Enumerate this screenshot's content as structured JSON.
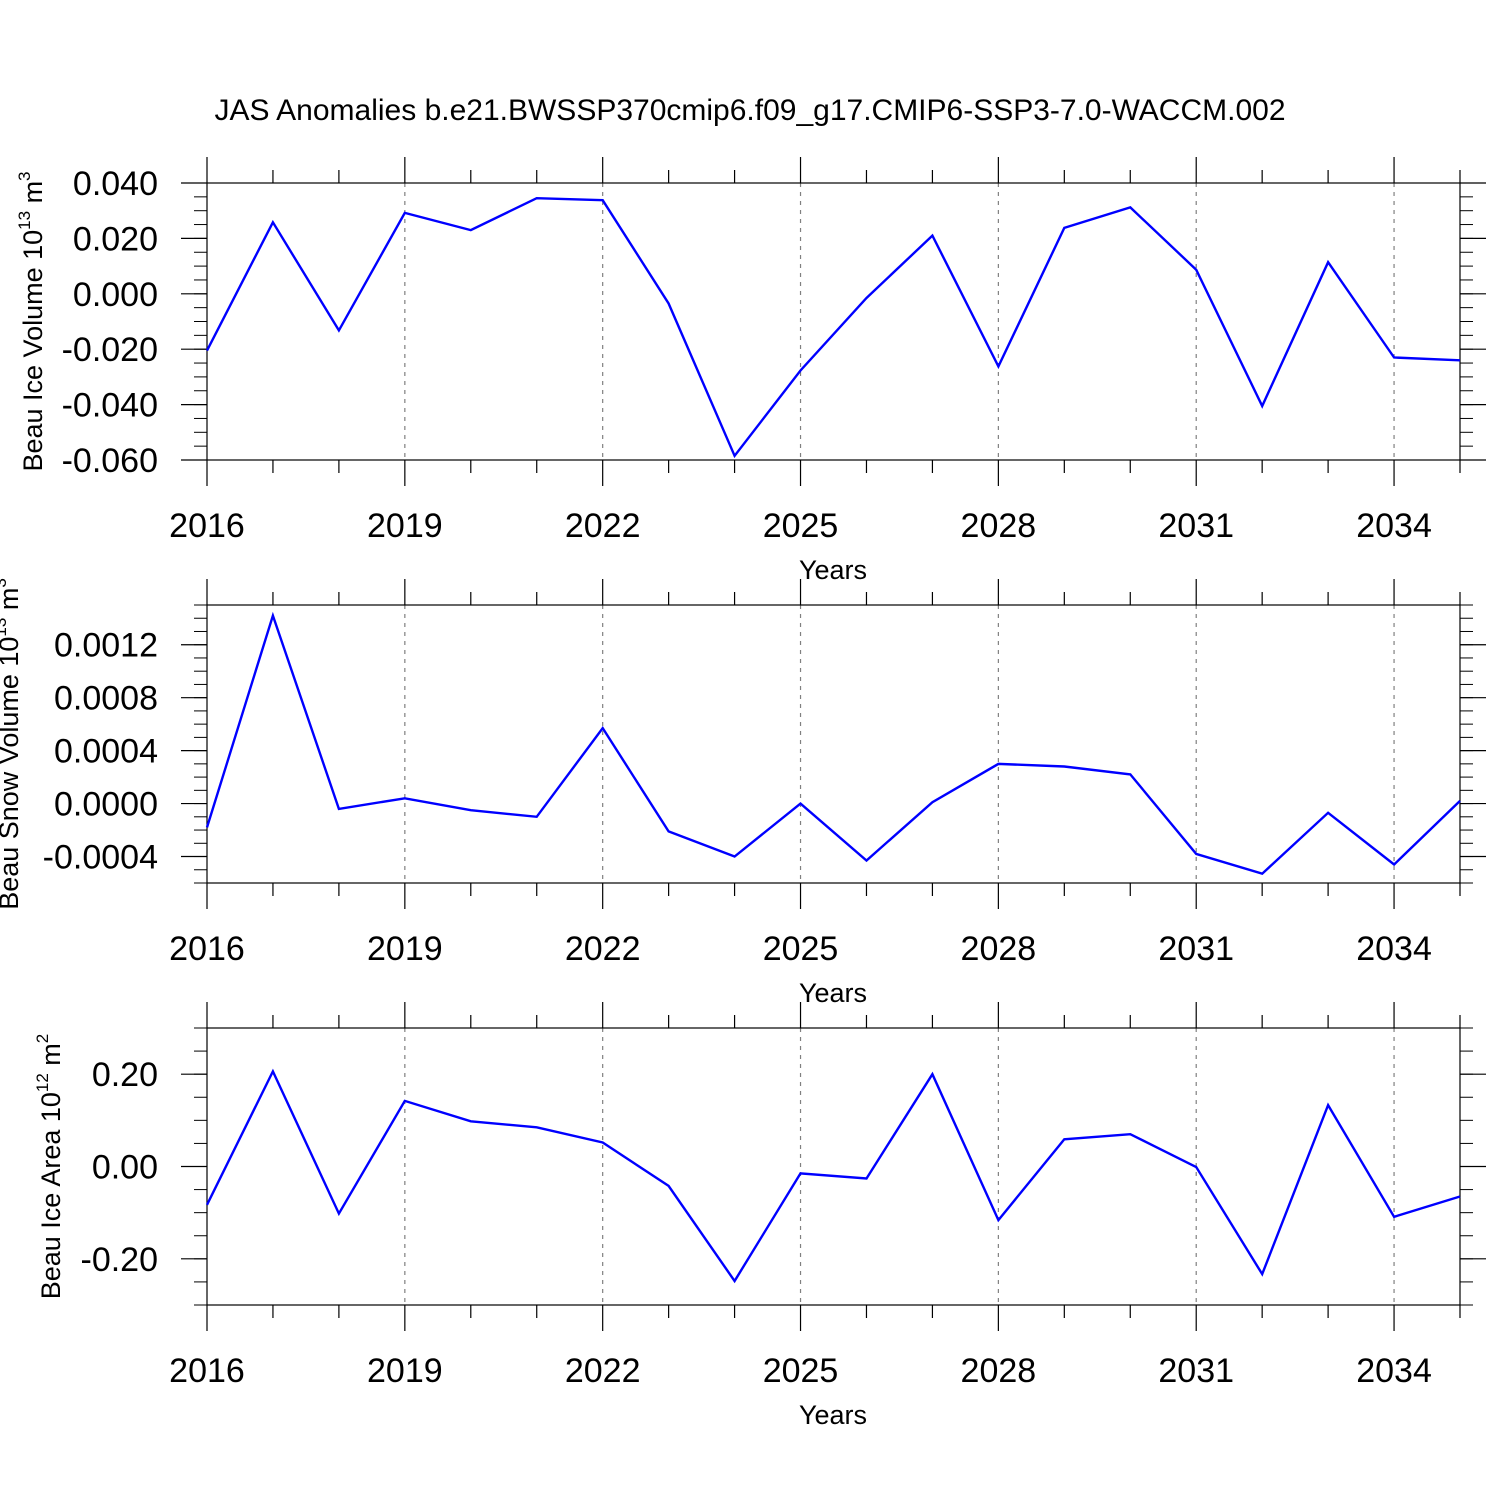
{
  "figure": {
    "title": "JAS Anomalies b.e21.BWSSP370cmip6.f09_g17.CMIP6-SSP3-7.0-WACCM.002",
    "line_color": "#0000ff",
    "grid_color": "#808080"
  },
  "chart_data": [
    {
      "type": "line",
      "ylabel": {
        "text": "Beau Ice Volume 10",
        "sup": "13",
        "unit": " m",
        "unit_sup": "3"
      },
      "xlabel": "Years",
      "xlim": [
        2016,
        2035
      ],
      "ylim": [
        -0.06,
        0.04
      ],
      "xticks": [
        "2016",
        "2019",
        "2022",
        "2025",
        "2028",
        "2031",
        "2034"
      ],
      "yticks": [
        {
          "value": 0.04,
          "label": "0.040"
        },
        {
          "value": 0.02,
          "label": "0.020"
        },
        {
          "value": 0.0,
          "label": "0.000"
        },
        {
          "value": -0.02,
          "label": "-0.020"
        },
        {
          "value": -0.04,
          "label": "-0.040"
        },
        {
          "value": -0.06,
          "label": "-0.060"
        }
      ],
      "grid": "vertical dashed at major x ticks",
      "series": [
        {
          "x": [
            2016,
            2017,
            2018,
            2019,
            2020,
            2021,
            2022,
            2023,
            2024,
            2025,
            2026,
            2027,
            2028,
            2029,
            2030,
            2031,
            2032,
            2033,
            2034,
            2035
          ],
          "values": [
            -0.0205,
            0.0258,
            -0.0132,
            0.0292,
            0.023,
            0.0345,
            0.0338,
            -0.0035,
            -0.0585,
            -0.0277,
            -0.0015,
            0.021,
            -0.0262,
            0.0238,
            0.0312,
            0.0087,
            -0.0405,
            0.0114,
            -0.023,
            -0.024
          ]
        }
      ]
    },
    {
      "type": "line",
      "ylabel": {
        "text": "Beau Snow Volume 10",
        "sup": "13",
        "unit": " m",
        "unit_sup": "3"
      },
      "xlabel": "Years",
      "xlim": [
        2016,
        2035
      ],
      "ylim": [
        -0.0006,
        0.0015
      ],
      "xticks": [
        "2016",
        "2019",
        "2022",
        "2025",
        "2028",
        "2031",
        "2034"
      ],
      "yticks": [
        {
          "value": 0.0012,
          "label": "0.0012"
        },
        {
          "value": 0.0008,
          "label": "0.0008"
        },
        {
          "value": 0.0004,
          "label": "0.0004"
        },
        {
          "value": 0.0,
          "label": "0.0000"
        },
        {
          "value": -0.0004,
          "label": "-0.0004"
        }
      ],
      "grid": "vertical dashed at major x ticks",
      "series": [
        {
          "x": [
            2016,
            2017,
            2018,
            2019,
            2020,
            2021,
            2022,
            2023,
            2024,
            2025,
            2026,
            2027,
            2028,
            2029,
            2030,
            2031,
            2032,
            2033,
            2034,
            2035
          ],
          "values": [
            -0.00018,
            0.00142,
            -4e-05,
            4e-05,
            -5e-05,
            -0.0001,
            0.00057,
            -0.00021,
            -0.0004,
            0.0,
            -0.00043,
            1e-05,
            0.0003,
            0.00028,
            0.00022,
            -0.00038,
            -0.00053,
            -7e-05,
            -0.00046,
            2e-05
          ]
        }
      ]
    },
    {
      "type": "line",
      "ylabel": {
        "text": "Beau Ice Area 10",
        "sup": "12",
        "unit": " m",
        "unit_sup": "2"
      },
      "xlabel": "Years",
      "xlim": [
        2016,
        2035
      ],
      "ylim": [
        -0.3,
        0.3
      ],
      "xticks": [
        "2016",
        "2019",
        "2022",
        "2025",
        "2028",
        "2031",
        "2034"
      ],
      "yticks": [
        {
          "value": 0.2,
          "label": "0.20"
        },
        {
          "value": 0.0,
          "label": "0.00"
        },
        {
          "value": -0.2,
          "label": "-0.20"
        }
      ],
      "grid": "vertical dashed at major x ticks",
      "series": [
        {
          "x": [
            2016,
            2017,
            2018,
            2019,
            2020,
            2021,
            2022,
            2023,
            2024,
            2025,
            2026,
            2027,
            2028,
            2029,
            2030,
            2031,
            2032,
            2033,
            2034,
            2035
          ],
          "values": [
            -0.083,
            0.206,
            -0.102,
            0.142,
            0.098,
            0.085,
            0.052,
            -0.042,
            -0.248,
            -0.015,
            -0.026,
            0.2,
            -0.116,
            0.059,
            0.07,
            -0.001,
            -0.233,
            0.133,
            -0.109,
            -0.065
          ]
        }
      ]
    }
  ]
}
